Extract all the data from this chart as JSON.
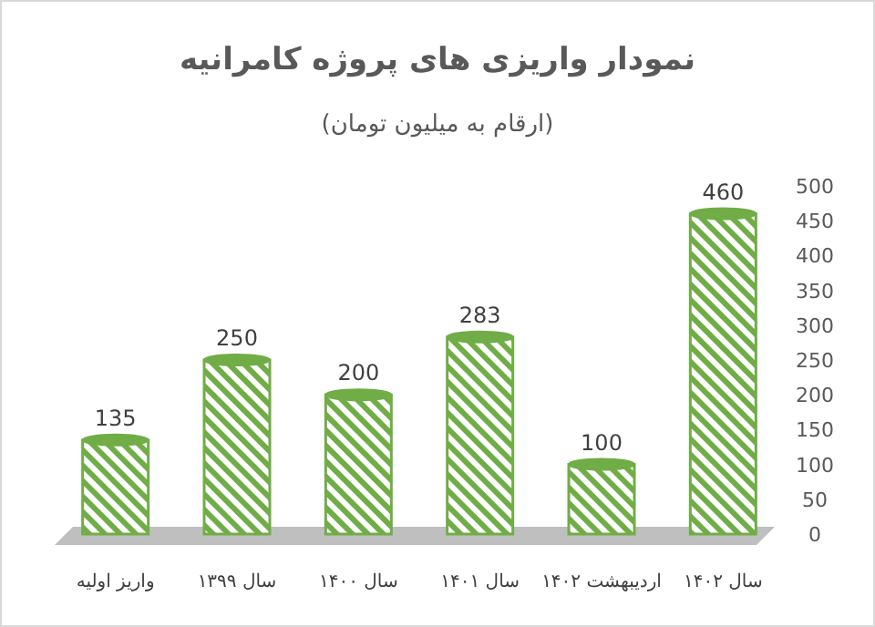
{
  "chart_data": {
    "type": "bar",
    "title": "نمودار واریزی های پروژه کامرانیه",
    "subtitle": "(ارقام به میلیون تومان)",
    "categories": [
      "واریز اولیه",
      "سال ۱۳۹۹",
      "سال ۱۴۰۰",
      "سال ۱۴۰۱",
      "اردیبهشت ۱۴۰۲",
      "سال ۱۴۰۲"
    ],
    "values": [
      135,
      250,
      200,
      283,
      100,
      460
    ],
    "color": "#70ad47",
    "ylim": [
      0,
      500
    ],
    "yticks": [
      0,
      50,
      100,
      150,
      200,
      250,
      300,
      350,
      400,
      450,
      500
    ],
    "data_labels": true,
    "grid": false
  }
}
